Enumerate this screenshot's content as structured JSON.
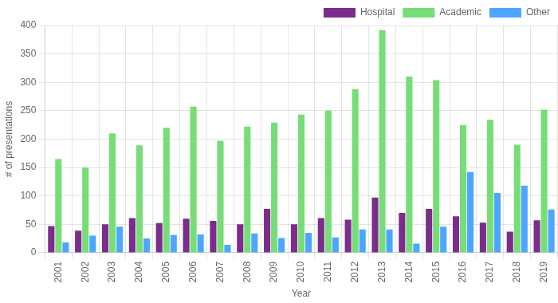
{
  "chart_data": {
    "type": "bar",
    "categories": [
      "2001",
      "2002",
      "2003",
      "2004",
      "2005",
      "2006",
      "2007",
      "2008",
      "2009",
      "2010",
      "2011",
      "2012",
      "2013",
      "2014",
      "2015",
      "2016",
      "2017",
      "2018",
      "2019"
    ],
    "series": [
      {
        "name": "Hospital",
        "color": "#7b2d8b",
        "values": [
          47,
          39,
          50,
          61,
          52,
          60,
          56,
          50,
          77,
          50,
          61,
          58,
          97,
          70,
          77,
          64,
          53,
          37,
          57
        ]
      },
      {
        "name": "Academic",
        "color": "#77dd77",
        "values": [
          165,
          150,
          210,
          189,
          220,
          257,
          197,
          222,
          229,
          243,
          250,
          288,
          392,
          310,
          304,
          225,
          234,
          190,
          252
        ]
      },
      {
        "name": "Other",
        "color": "#4da6ff",
        "values": [
          18,
          30,
          46,
          25,
          31,
          32,
          14,
          34,
          26,
          35,
          27,
          41,
          41,
          16,
          46,
          142,
          105,
          118,
          76
        ]
      }
    ],
    "x_label": "Year",
    "y_label": "# of presentations",
    "ylim": [
      0,
      400
    ],
    "yticks": [
      0,
      50,
      100,
      150,
      200,
      250,
      300,
      350,
      400
    ],
    "grid": true,
    "legend": "upper right"
  }
}
